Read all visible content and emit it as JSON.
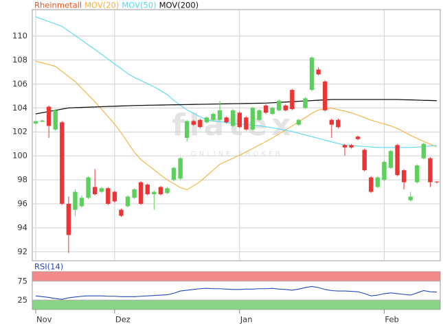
{
  "chart_data": {
    "type": "candlestick",
    "name": "Rheinmetall",
    "color": "#f05020",
    "up_color": "#5ccf5c",
    "down_color": "#ec3434",
    "watermark": [
      "flatex",
      "ONLINE BROKER"
    ],
    "categories": [
      "Nov",
      null,
      null,
      null,
      null,
      null,
      null,
      null,
      null,
      null,
      null,
      null,
      "Dez",
      null,
      null,
      null,
      null,
      null,
      null,
      null,
      null,
      null,
      null,
      null,
      null,
      null,
      null,
      null,
      null,
      null,
      null,
      "Jan",
      null,
      null,
      null,
      null,
      null,
      null,
      null,
      null,
      null,
      null,
      null,
      null,
      null,
      null,
      null,
      null,
      null,
      null,
      null,
      null,
      null,
      "Feb",
      null,
      null,
      null,
      null,
      null,
      null,
      null,
      null
    ],
    "open": [
      102.7,
      102.85,
      104.1,
      102.2,
      102.8,
      96.0,
      95.5,
      95.8,
      96.5,
      97.4,
      97.0,
      97.3,
      97.0,
      95.5,
      95.8,
      96.5,
      97.8,
      97.6,
      96.8,
      97.4,
      96.9,
      98.0,
      98.1,
      101.5,
      102.9,
      103.0,
      102.8,
      103.0,
      103.0,
      103.2,
      102.5,
      103.6,
      103.2,
      102.2,
      103.0,
      104.2,
      103.5,
      103.8,
      104.2,
      105.5,
      102.6,
      104.0,
      105.5,
      107.2,
      106.2,
      103.0,
      103.0,
      100.9,
      100.9,
      101.6,
      100.5,
      98.2,
      97.4,
      98.0,
      99.0,
      100.9,
      98.8,
      96.3,
      97.8,
      99.8,
      99.8,
      97.85
    ],
    "high": [
      102.9,
      103.0,
      104.2,
      103.9,
      102.9,
      96.6,
      97.2,
      96.7,
      98.3,
      98.9,
      97.4,
      97.4,
      97.1,
      95.6,
      96.7,
      97.3,
      97.9,
      97.7,
      97.1,
      97.5,
      97.4,
      99.1,
      99.9,
      103.0,
      103.0,
      103.1,
      103.3,
      103.6,
      104.6,
      103.3,
      103.9,
      103.7,
      103.3,
      104.1,
      103.9,
      104.3,
      104.1,
      104.7,
      104.3,
      105.6,
      103.1,
      104.9,
      108.3,
      107.4,
      106.3,
      103.1,
      103.1,
      101.0,
      101.0,
      101.7,
      100.6,
      98.3,
      98.3,
      99.6,
      100.5,
      101.0,
      98.9,
      97.0,
      99.3,
      101.1,
      99.9,
      97.9
    ],
    "low": [
      102.6,
      102.8,
      101.5,
      102.1,
      95.9,
      91.9,
      95.0,
      95.7,
      96.4,
      96.7,
      96.9,
      95.9,
      96.1,
      94.9,
      95.7,
      96.4,
      95.9,
      96.7,
      95.5,
      96.7,
      96.8,
      97.9,
      98.0,
      101.2,
      102.5,
      102.3,
      102.7,
      102.9,
      102.9,
      102.7,
      102.4,
      102.3,
      102.1,
      102.1,
      102.9,
      103.5,
      103.4,
      103.7,
      103.7,
      103.8,
      102.5,
      103.9,
      105.4,
      106.7,
      103.7,
      101.5,
      102.3,
      100.0,
      100.6,
      101.3,
      98.7,
      96.9,
      97.3,
      97.9,
      98.9,
      98.3,
      97.2,
      96.2,
      97.7,
      99.7,
      97.4,
      97.7
    ],
    "close": [
      102.9,
      102.95,
      102.5,
      103.8,
      96.0,
      93.4,
      97.0,
      96.5,
      98.2,
      96.8,
      97.3,
      96.0,
      96.2,
      95.0,
      96.6,
      97.2,
      96.0,
      96.8,
      97.0,
      96.8,
      97.3,
      99.0,
      99.8,
      102.9,
      102.6,
      102.4,
      103.2,
      103.5,
      103.8,
      102.8,
      103.8,
      102.4,
      102.2,
      104.0,
      103.8,
      103.6,
      104.0,
      104.6,
      103.8,
      103.9,
      103.0,
      104.8,
      108.2,
      106.8,
      103.8,
      102.6,
      102.4,
      100.7,
      100.7,
      101.4,
      98.8,
      97.0,
      98.2,
      99.5,
      100.4,
      98.4,
      97.8,
      96.6,
      99.2,
      101.0,
      97.8,
      97.8
    ],
    "series": [
      {
        "name": "MOV(20)",
        "color": "#f7b03a",
        "values": [
          107.9,
          107.76,
          107.62,
          107.46,
          107.04,
          106.62,
          106.2,
          105.64,
          105.08,
          104.51,
          103.9,
          103.28,
          102.65,
          101.92,
          101.11,
          100.31,
          99.69,
          99.26,
          98.83,
          98.4,
          98.0,
          97.68,
          97.36,
          97.17,
          97.5,
          97.85,
          98.33,
          98.82,
          99.3,
          99.55,
          99.8,
          100.05,
          100.33,
          100.61,
          100.9,
          101.19,
          101.5,
          101.83,
          102.16,
          102.5,
          102.84,
          103.2,
          103.55,
          103.83,
          103.92,
          103.98,
          103.85,
          103.73,
          103.6,
          103.39,
          103.19,
          102.98,
          102.82,
          102.66,
          102.5,
          102.28,
          102.0,
          101.71,
          101.45,
          101.21,
          100.98,
          100.74
        ]
      },
      {
        "name": "MOV(50)",
        "color": "#55d8f5",
        "values": [
          111.6,
          111.4,
          111.2,
          111.0,
          110.8,
          110.42,
          110.03,
          109.65,
          109.26,
          108.88,
          108.48,
          108.07,
          107.67,
          107.27,
          106.86,
          106.54,
          106.28,
          106.02,
          105.76,
          105.44,
          105.11,
          104.63,
          104.22,
          103.84,
          103.55,
          103.26,
          102.99,
          102.92,
          102.85,
          102.78,
          102.7,
          102.66,
          102.61,
          102.56,
          102.51,
          102.43,
          102.34,
          102.24,
          102.15,
          102.03,
          101.89,
          101.74,
          101.6,
          101.46,
          101.31,
          101.17,
          101.03,
          100.9,
          100.86,
          100.82,
          100.78,
          100.74,
          100.7,
          100.7,
          100.7,
          100.7,
          100.7,
          100.7,
          100.73,
          100.78,
          100.82,
          100.88
        ]
      },
      {
        "name": "MOV(200)",
        "color": "#111111",
        "values": [
          103.5,
          103.6,
          103.7,
          103.8,
          103.9,
          104.0,
          104.02,
          104.04,
          104.06,
          104.08,
          104.1,
          104.12,
          104.14,
          104.16,
          104.18,
          104.2,
          104.21,
          104.22,
          104.23,
          104.24,
          104.25,
          104.26,
          104.27,
          104.28,
          104.29,
          104.3,
          104.31,
          104.32,
          104.33,
          104.34,
          104.35,
          104.36,
          104.37,
          104.38,
          104.39,
          104.4,
          104.43,
          104.46,
          104.49,
          104.52,
          104.55,
          104.58,
          104.61,
          104.64,
          104.67,
          104.7,
          104.7,
          104.7,
          104.7,
          104.7,
          104.7,
          104.7,
          104.7,
          104.7,
          104.7,
          104.7,
          104.68,
          104.67,
          104.65,
          104.63,
          104.62,
          104.6
        ]
      }
    ],
    "ylim": [
      91.25,
      112.2
    ],
    "yticks": [
      92,
      94,
      96,
      98,
      100,
      102,
      104,
      106,
      108,
      110
    ],
    "grid": true,
    "rsi": {
      "name": "RSI(14)",
      "color": "#2346b8",
      "ylim": [
        0,
        100
      ],
      "yticks": [
        25,
        75
      ],
      "overbought": {
        "from": 75,
        "to": 100,
        "color": "#f07878"
      },
      "oversold": {
        "from": 0,
        "to": 25,
        "color": "#74cc74"
      },
      "values": [
        36,
        34,
        32,
        29,
        27,
        31,
        33,
        35,
        36,
        36,
        36,
        35,
        35,
        34,
        34,
        34,
        35,
        36,
        37,
        38,
        39,
        43,
        49,
        51,
        53,
        55,
        56,
        55,
        55,
        54,
        53,
        53,
        54,
        54,
        55,
        55,
        56,
        54,
        53,
        51,
        54,
        58,
        61,
        58,
        53,
        50,
        49,
        49,
        48,
        47,
        42,
        36,
        38,
        42,
        44,
        42,
        40,
        38,
        44,
        50,
        47,
        46
      ]
    }
  }
}
